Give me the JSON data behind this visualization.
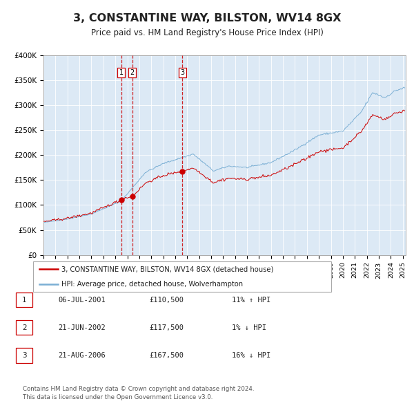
{
  "title": "3, CONSTANTINE WAY, BILSTON, WV14 8GX",
  "subtitle": "Price paid vs. HM Land Registry's House Price Index (HPI)",
  "bg_color": "#ffffff",
  "plot_bg_color": "#dce9f5",
  "red_line_color": "#cc0000",
  "blue_line_color": "#7bafd4",
  "grid_color": "#ffffff",
  "sales": [
    {
      "date": "2001-07-06",
      "price": 110500,
      "label": "1"
    },
    {
      "date": "2002-06-21",
      "price": 117500,
      "label": "2"
    },
    {
      "date": "2006-08-21",
      "price": 167500,
      "label": "3"
    }
  ],
  "legend_red": "3, CONSTANTINE WAY, BILSTON, WV14 8GX (detached house)",
  "legend_blue": "HPI: Average price, detached house, Wolverhampton",
  "table_rows": [
    [
      "1",
      "06-JUL-2001",
      "£110,500",
      "11% ↑ HPI"
    ],
    [
      "2",
      "21-JUN-2002",
      "£117,500",
      "1% ↓ HPI"
    ],
    [
      "3",
      "21-AUG-2006",
      "£167,500",
      "16% ↓ HPI"
    ]
  ],
  "footnote": "Contains HM Land Registry data © Crown copyright and database right 2024.\nThis data is licensed under the Open Government Licence v3.0.",
  "ylim": [
    0,
    400000
  ],
  "yticks": [
    0,
    50000,
    100000,
    150000,
    200000,
    250000,
    300000,
    350000,
    400000
  ],
  "ytick_labels": [
    "£0",
    "£50K",
    "£100K",
    "£150K",
    "£200K",
    "£250K",
    "£300K",
    "£350K",
    "£400K"
  ]
}
